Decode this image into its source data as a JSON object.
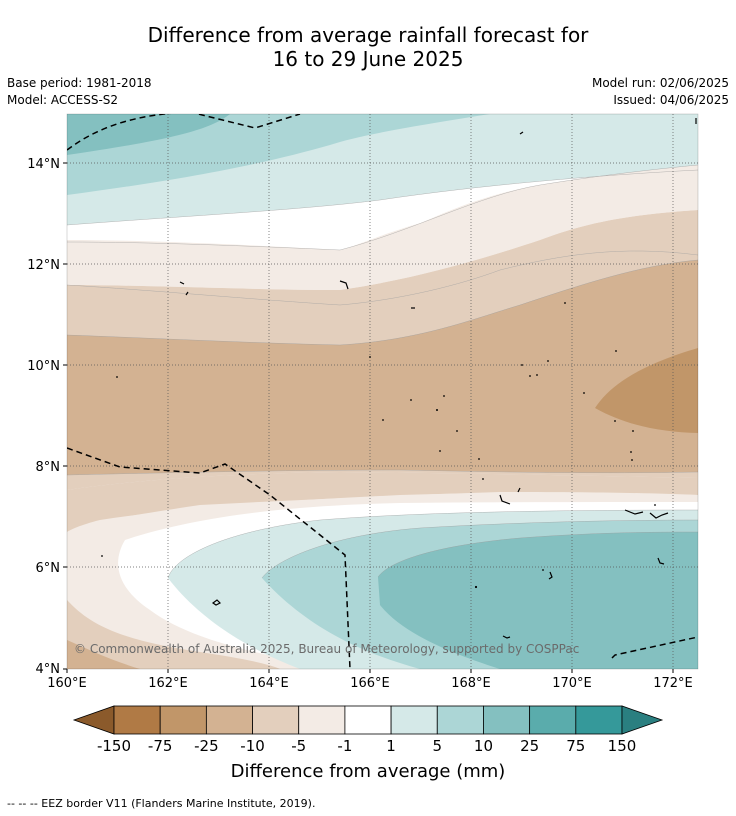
{
  "title_line1": "Difference from average rainfall forecast for",
  "title_line2": "16 to 29 June 2025",
  "base_period": "Base period: 1981-2018",
  "model": "Model: ACCESS-S2",
  "model_run": "Model run: 02/06/2025",
  "issued": "Issued: 04/06/2025",
  "copyright": "© Commonwealth of Australia 2025, Bureau of Meteorology, supported by COSPPac",
  "y_ticks": [
    "14°N",
    "12°N",
    "10°N",
    "8°N",
    "6°N",
    "4°N"
  ],
  "x_ticks": [
    "160°E",
    "162°E",
    "164°E",
    "166°E",
    "168°E",
    "170°E",
    "172°E"
  ],
  "colorbar": {
    "labels": [
      "-150",
      "-75",
      "-25",
      "-10",
      "-5",
      "-1",
      "1",
      "5",
      "10",
      "25",
      "75",
      "150"
    ],
    "colors": [
      "#8b5a2b",
      "#b07a45",
      "#c19669",
      "#d3b292",
      "#e3cfbd",
      "#f3ebe5",
      "#ffffff",
      "#d5e9e8",
      "#acd6d6",
      "#84c0c0",
      "#5aacac",
      "#35999a",
      "#2a7f80"
    ],
    "title": "Difference from average (mm)"
  },
  "footnote": "--  --  -- EEZ border V11 (Flanders Marine Institute, 2019)."
}
